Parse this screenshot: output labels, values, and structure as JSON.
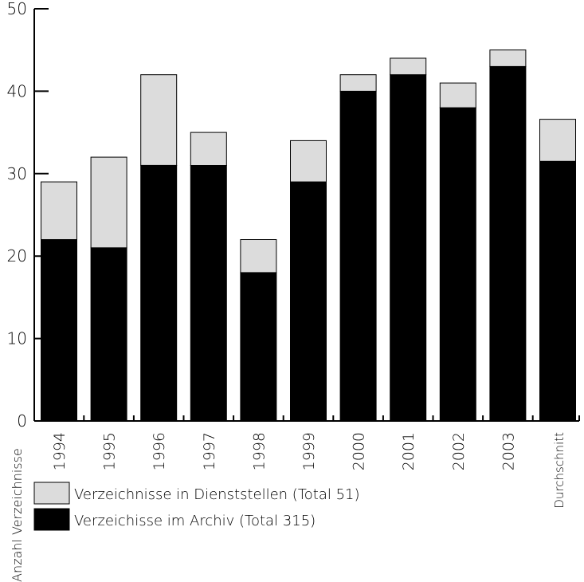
{
  "chart_data": {
    "type": "bar",
    "stacked": true,
    "categories": [
      "1994",
      "1995",
      "1996",
      "1997",
      "1998",
      "1999",
      "2000",
      "2001",
      "2002",
      "2003",
      "Durchschnitt"
    ],
    "series": [
      {
        "name": "Verzeichisse im Archiv (Total 315)",
        "color": "#000000",
        "values": [
          22,
          21,
          31,
          31,
          18,
          29,
          40,
          42,
          38,
          43,
          31.5
        ]
      },
      {
        "name": "Verzeichnisse in Dienststellen (Total 51)",
        "color": "#dcdcdc",
        "values": [
          7,
          11,
          11,
          4,
          4,
          5,
          2,
          2,
          3,
          2,
          5.1
        ]
      }
    ],
    "ylabel": "Anzahl Verzeichnisse",
    "ylim": [
      0,
      50
    ],
    "yticks": [
      0,
      10,
      20,
      30,
      40,
      50
    ],
    "grid": false,
    "legend_position": "bottom-left"
  }
}
